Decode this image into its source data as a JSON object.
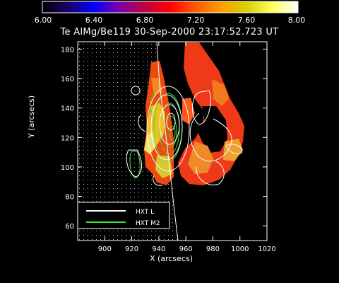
{
  "title": "Te AlMg/Be119 30-Sep-2000 23:17:52.723 UT",
  "colorbar": {
    "min": 6.0,
    "max": 8.0,
    "tick_labels": [
      "6.00",
      "6.40",
      "6.80",
      "7.20",
      "7.60",
      "8.00"
    ],
    "tick_values": [
      6.0,
      6.4,
      6.8,
      7.2,
      7.6,
      8.0
    ]
  },
  "axes": {
    "xlabel": "X (arcsecs)",
    "ylabel": "Y (arcsecs)",
    "xlim": [
      880,
      1020
    ],
    "ylim": [
      50,
      185
    ],
    "xticks": [
      "900",
      "920",
      "940",
      "960",
      "980",
      "1000",
      "1020"
    ],
    "xtick_values": [
      900,
      920,
      940,
      960,
      980,
      1000,
      1020
    ],
    "yticks": [
      "60",
      "80",
      "100",
      "120",
      "140",
      "160",
      "180"
    ],
    "ytick_values": [
      60,
      80,
      100,
      120,
      140,
      160,
      180
    ]
  },
  "legend": {
    "placement": "bottom-left",
    "entries": [
      {
        "label": "HXT L",
        "color": "#ffffff"
      },
      {
        "label": "HXT M2",
        "color": "#3ddc3d"
      }
    ]
  },
  "colors": {
    "background": "#000000",
    "axes": "#ffffff",
    "hxt_l": "#ffffff",
    "hxt_m2": "#3ddc3d"
  }
}
